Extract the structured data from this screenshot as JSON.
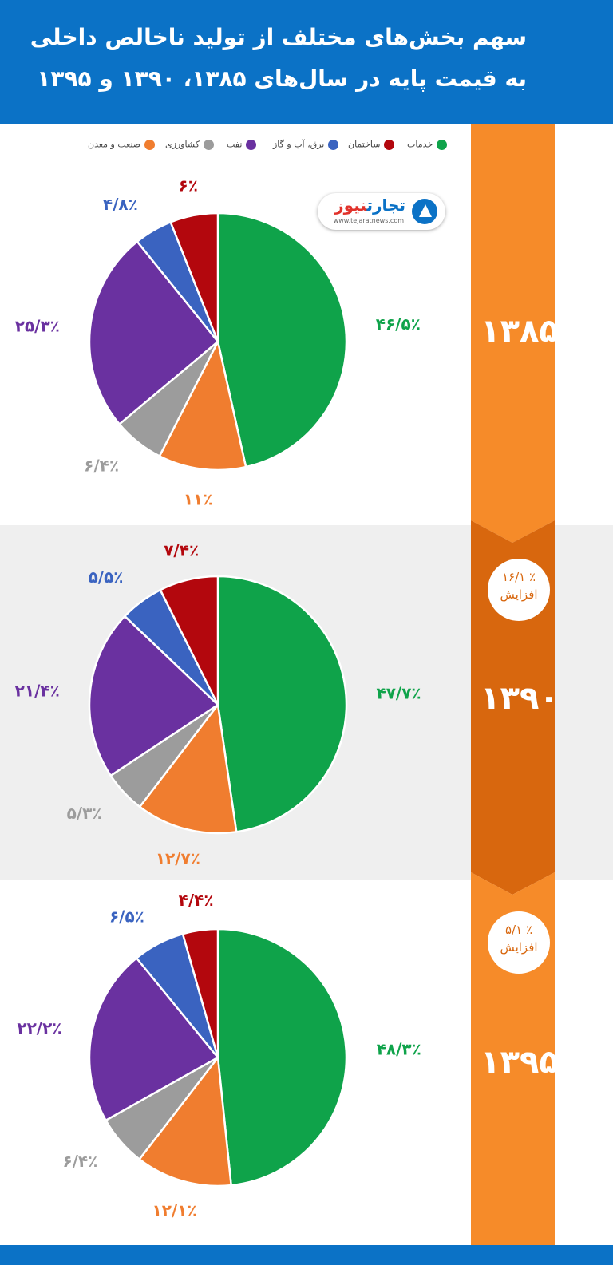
{
  "header": {
    "title_line1": "سهم بخش‌های مختلف از تولید ناخالص داخلی",
    "title_line2": "به قیمت پایه در سال‌های ۱۳۸۵، ۱۳۹۰ و ۱۳۹۵"
  },
  "logo": {
    "name_main": "تجارت",
    "name_accent": "نیوز",
    "site": "www.tejaratnews.com"
  },
  "colors": {
    "header_bg": "#0b72c6",
    "rail": "#f68b29",
    "rail_dark": "#d8670e"
  },
  "chart_data": [
    {
      "type": "pie",
      "year": "۱۳۸۵",
      "slices": [
        {
          "name": "خدمات",
          "value": 46.5,
          "label": "۴۶/۵٪",
          "color": "#0fa34a"
        },
        {
          "name": "صنعت و معدن",
          "value": 11,
          "label": "۱۱٪",
          "color": "#f07d2f"
        },
        {
          "name": "کشاورزی",
          "value": 6.4,
          "label": "۶/۴٪",
          "color": "#9c9c9c"
        },
        {
          "name": "نفت",
          "value": 25.3,
          "label": "۲۵/۳٪",
          "color": "#6a31a0"
        },
        {
          "name": "برق، آب و گاز",
          "value": 4.8,
          "label": "۴/۸٪",
          "color": "#3a63c0"
        },
        {
          "name": "ساختمان",
          "value": 6,
          "label": "۶٪",
          "color": "#b3070d"
        }
      ]
    },
    {
      "type": "pie",
      "year": "۱۳۹۰",
      "increase": "٪ ۱۶/۱",
      "increase_word": "افزایش",
      "slices": [
        {
          "name": "خدمات",
          "value": 47.7,
          "label": "۴۷/۷٪",
          "color": "#0fa34a"
        },
        {
          "name": "صنعت و معدن",
          "value": 12.7,
          "label": "۱۲/۷٪",
          "color": "#f07d2f"
        },
        {
          "name": "کشاورزی",
          "value": 5.3,
          "label": "۵/۳٪",
          "color": "#9c9c9c"
        },
        {
          "name": "نفت",
          "value": 21.4,
          "label": "۲۱/۴٪",
          "color": "#6a31a0"
        },
        {
          "name": "برق، آب و گاز",
          "value": 5.5,
          "label": "۵/۵٪",
          "color": "#3a63c0"
        },
        {
          "name": "ساختمان",
          "value": 7.4,
          "label": "۷/۴٪",
          "color": "#b3070d"
        }
      ]
    },
    {
      "type": "pie",
      "year": "۱۳۹۵",
      "increase": "٪ ۵/۱",
      "increase_word": "افزایش",
      "slices": [
        {
          "name": "خدمات",
          "value": 48.3,
          "label": "۴۸/۳٪",
          "color": "#0fa34a"
        },
        {
          "name": "صنعت و معدن",
          "value": 12.1,
          "label": "۱۲/۱٪",
          "color": "#f07d2f"
        },
        {
          "name": "کشاورزی",
          "value": 6.4,
          "label": "۶/۴٪",
          "color": "#9c9c9c"
        },
        {
          "name": "نفت",
          "value": 22.2,
          "label": "۲۲/۲٪",
          "color": "#6a31a0"
        },
        {
          "name": "برق، آب و گاز",
          "value": 6.5,
          "label": "۶/۵٪",
          "color": "#3a63c0"
        },
        {
          "name": "ساختمان",
          "value": 4.4,
          "label": "۴/۴٪",
          "color": "#b3070d"
        }
      ]
    }
  ],
  "legend": [
    {
      "label": "خدمات",
      "color": "#0fa34a"
    },
    {
      "label": "ساختمان",
      "color": "#b3070d"
    },
    {
      "label": "برق، آب و گاز",
      "color": "#3a63c0"
    },
    {
      "label": "نفت",
      "color": "#6a31a0"
    },
    {
      "label": "کشاورزی",
      "color": "#9c9c9c"
    },
    {
      "label": "صنعت و معدن",
      "color": "#f07d2f"
    }
  ]
}
